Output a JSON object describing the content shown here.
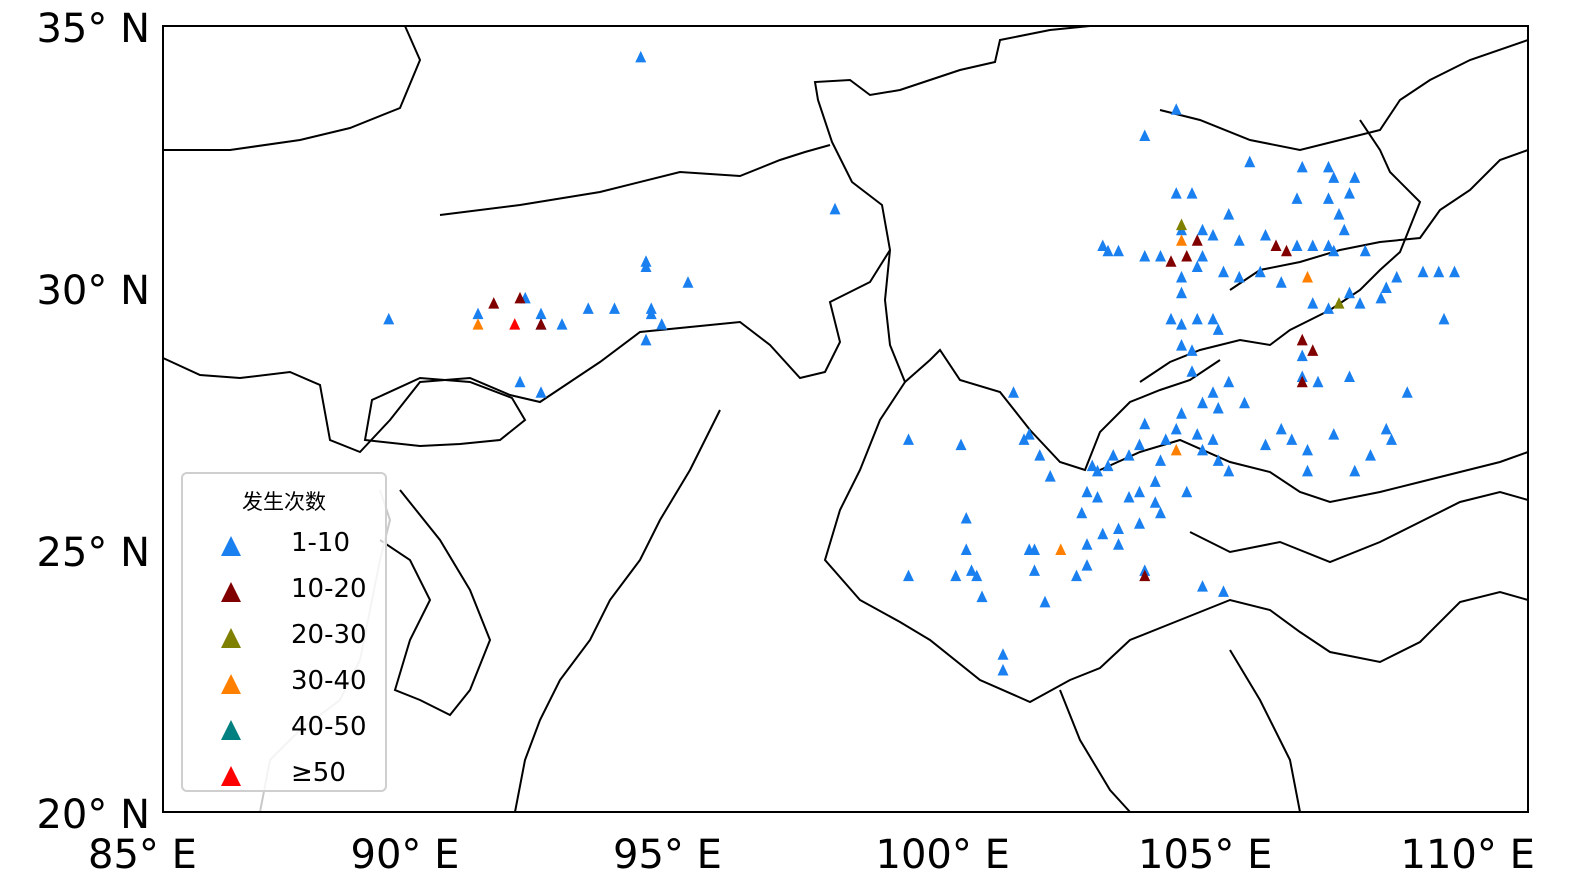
{
  "chart_data": {
    "type": "scatter",
    "title": "",
    "xlabel": "",
    "ylabel": "",
    "xlim": [
      85,
      111
    ],
    "ylim": [
      20,
      35
    ],
    "x_ticks": [
      "85° E",
      "90° E",
      "95° E",
      "100° E",
      "105° E",
      "110° E"
    ],
    "x_tick_values": [
      85,
      90,
      95,
      100,
      105,
      110
    ],
    "y_ticks": [
      "35° N",
      "30° N",
      "25° N",
      "20° N"
    ],
    "y_tick_values": [
      35,
      30,
      25,
      20
    ],
    "legend": {
      "title": "发生次数",
      "placement": "lower-left",
      "entries": [
        {
          "label": "1-10",
          "color": "#1a80f0"
        },
        {
          "label": "10-20",
          "color": "#800000"
        },
        {
          "label": "20-30",
          "color": "#808000"
        },
        {
          "label": "30-40",
          "color": "#ff8000"
        },
        {
          "label": "40-50",
          "color": "#008080"
        },
        {
          "label": "≥50",
          "color": "#ff0000"
        }
      ]
    },
    "series": [
      {
        "name": "1-10",
        "points": [
          [
            94.1,
            34.4
          ],
          [
            97.8,
            31.5
          ],
          [
            89.3,
            29.4
          ],
          [
            91.0,
            29.5
          ],
          [
            91.9,
            29.8
          ],
          [
            92.2,
            29.5
          ],
          [
            92.2,
            29.3
          ],
          [
            92.6,
            29.3
          ],
          [
            93.1,
            29.6
          ],
          [
            93.6,
            29.6
          ],
          [
            94.2,
            30.5
          ],
          [
            94.2,
            30.4
          ],
          [
            94.3,
            29.6
          ],
          [
            94.3,
            29.5
          ],
          [
            94.5,
            29.3
          ],
          [
            94.2,
            29.0
          ],
          [
            95.0,
            30.1
          ],
          [
            91.8,
            28.2
          ],
          [
            92.2,
            28.0
          ],
          [
            103.7,
            32.9
          ],
          [
            104.3,
            33.4
          ],
          [
            105.7,
            32.4
          ],
          [
            104.3,
            31.8
          ],
          [
            104.6,
            31.8
          ],
          [
            102.9,
            30.8
          ],
          [
            103.0,
            30.7
          ],
          [
            103.2,
            30.7
          ],
          [
            103.7,
            30.6
          ],
          [
            104.0,
            30.6
          ],
          [
            104.4,
            31.1
          ],
          [
            104.8,
            31.1
          ],
          [
            105.0,
            31.0
          ],
          [
            105.3,
            31.4
          ],
          [
            105.5,
            30.9
          ],
          [
            106.0,
            31.0
          ],
          [
            106.6,
            30.8
          ],
          [
            106.7,
            32.3
          ],
          [
            106.6,
            31.7
          ],
          [
            107.2,
            32.3
          ],
          [
            107.3,
            32.1
          ],
          [
            107.2,
            31.7
          ],
          [
            107.7,
            32.1
          ],
          [
            107.6,
            31.8
          ],
          [
            107.4,
            31.4
          ],
          [
            107.5,
            31.1
          ],
          [
            107.2,
            30.8
          ],
          [
            106.9,
            30.8
          ],
          [
            107.3,
            30.7
          ],
          [
            107.9,
            30.7
          ],
          [
            104.4,
            30.2
          ],
          [
            104.7,
            30.4
          ],
          [
            104.8,
            30.6
          ],
          [
            105.2,
            30.3
          ],
          [
            104.4,
            29.9
          ],
          [
            104.2,
            29.4
          ],
          [
            104.4,
            29.3
          ],
          [
            104.7,
            29.4
          ],
          [
            105.0,
            29.4
          ],
          [
            104.4,
            28.9
          ],
          [
            104.6,
            28.8
          ],
          [
            105.1,
            29.2
          ],
          [
            104.6,
            28.4
          ],
          [
            105.5,
            30.2
          ],
          [
            105.9,
            30.3
          ],
          [
            106.3,
            30.1
          ],
          [
            106.9,
            29.7
          ],
          [
            107.6,
            29.9
          ],
          [
            107.8,
            29.7
          ],
          [
            108.3,
            30.0
          ],
          [
            108.5,
            30.2
          ],
          [
            109.0,
            30.3
          ],
          [
            109.3,
            30.3
          ],
          [
            109.6,
            30.3
          ],
          [
            109.4,
            29.4
          ],
          [
            108.2,
            29.8
          ],
          [
            107.2,
            29.6
          ],
          [
            106.7,
            28.7
          ],
          [
            106.7,
            28.3
          ],
          [
            107.0,
            28.2
          ],
          [
            107.6,
            28.3
          ],
          [
            108.7,
            28.0
          ],
          [
            108.3,
            27.3
          ],
          [
            108.4,
            27.1
          ],
          [
            107.7,
            26.5
          ],
          [
            108.0,
            26.8
          ],
          [
            107.3,
            27.2
          ],
          [
            106.8,
            26.9
          ],
          [
            106.8,
            26.5
          ],
          [
            106.3,
            27.3
          ],
          [
            106.0,
            27.0
          ],
          [
            106.5,
            27.1
          ],
          [
            105.6,
            27.8
          ],
          [
            105.3,
            28.2
          ],
          [
            105.0,
            28.0
          ],
          [
            105.1,
            27.7
          ],
          [
            104.8,
            27.8
          ],
          [
            104.7,
            27.2
          ],
          [
            105.0,
            27.1
          ],
          [
            105.1,
            26.7
          ],
          [
            105.3,
            26.5
          ],
          [
            104.8,
            26.9
          ],
          [
            104.4,
            27.6
          ],
          [
            104.3,
            27.3
          ],
          [
            104.1,
            27.1
          ],
          [
            104.0,
            26.7
          ],
          [
            103.7,
            27.4
          ],
          [
            103.6,
            27.0
          ],
          [
            103.4,
            26.8
          ],
          [
            103.1,
            26.8
          ],
          [
            103.0,
            26.6
          ],
          [
            102.7,
            26.6
          ],
          [
            102.6,
            26.1
          ],
          [
            102.8,
            26.5
          ],
          [
            103.6,
            26.1
          ],
          [
            103.4,
            26.0
          ],
          [
            103.9,
            25.9
          ],
          [
            104.0,
            25.7
          ],
          [
            104.5,
            26.1
          ],
          [
            103.6,
            25.5
          ],
          [
            103.2,
            25.4
          ],
          [
            102.9,
            25.3
          ],
          [
            102.6,
            25.1
          ],
          [
            103.2,
            25.1
          ],
          [
            103.7,
            24.6
          ],
          [
            104.8,
            24.3
          ],
          [
            105.2,
            24.2
          ],
          [
            102.6,
            24.7
          ],
          [
            102.4,
            24.5
          ],
          [
            101.5,
            25.0
          ],
          [
            101.6,
            25.0
          ],
          [
            101.8,
            24.0
          ],
          [
            101.6,
            24.6
          ],
          [
            101.0,
            23.0
          ],
          [
            101.0,
            22.7
          ],
          [
            101.2,
            28.0
          ],
          [
            101.4,
            27.1
          ],
          [
            101.5,
            27.2
          ],
          [
            101.7,
            26.8
          ],
          [
            101.9,
            26.4
          ],
          [
            99.2,
            27.1
          ],
          [
            100.2,
            27.0
          ],
          [
            100.3,
            25.6
          ],
          [
            100.3,
            25.0
          ],
          [
            100.1,
            24.5
          ],
          [
            100.4,
            24.6
          ],
          [
            100.5,
            24.5
          ],
          [
            100.6,
            24.1
          ],
          [
            99.2,
            24.5
          ],
          [
            102.5,
            25.7
          ],
          [
            103.9,
            26.3
          ],
          [
            102.8,
            26.0
          ]
        ]
      },
      {
        "name": "10-20",
        "points": [
          [
            91.3,
            29.7
          ],
          [
            91.8,
            29.8
          ],
          [
            92.2,
            29.3
          ],
          [
            104.2,
            30.5
          ],
          [
            104.5,
            30.6
          ],
          [
            104.7,
            30.9
          ],
          [
            106.2,
            30.8
          ],
          [
            106.4,
            30.7
          ],
          [
            106.7,
            29.0
          ],
          [
            106.9,
            28.8
          ],
          [
            106.7,
            28.2
          ],
          [
            103.7,
            24.5
          ]
        ]
      },
      {
        "name": "20-30",
        "points": [
          [
            104.4,
            31.2
          ],
          [
            107.4,
            29.7
          ]
        ]
      },
      {
        "name": "30-40",
        "points": [
          [
            91.0,
            29.3
          ],
          [
            104.4,
            30.9
          ],
          [
            106.8,
            30.2
          ],
          [
            102.1,
            25.0
          ],
          [
            104.3,
            26.9
          ]
        ]
      },
      {
        "name": "40-50",
        "points": []
      },
      {
        "name": "≥50",
        "points": [
          [
            91.7,
            29.3
          ]
        ]
      }
    ]
  }
}
